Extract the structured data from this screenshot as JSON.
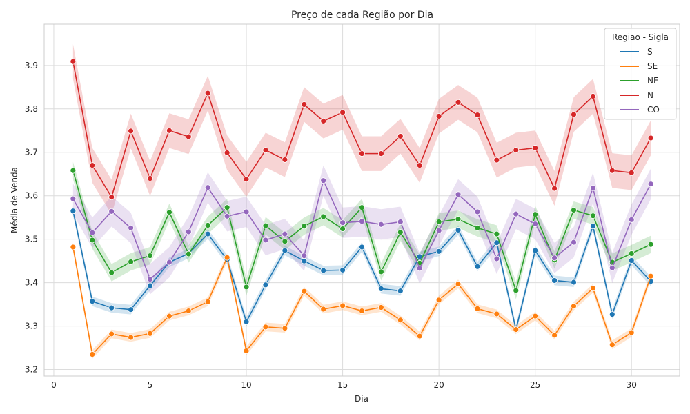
{
  "chart_data": {
    "type": "line",
    "title": "Preço de cada Região por Dia",
    "xlabel": "Dia",
    "ylabel": "Média de Venda",
    "xlim": [
      -0.5,
      32.5
    ],
    "ylim": [
      3.185,
      3.995
    ],
    "xticks": [
      0,
      5,
      10,
      15,
      20,
      25,
      30
    ],
    "yticks": [
      3.2,
      3.3,
      3.4,
      3.5,
      3.6,
      3.7,
      3.8,
      3.9
    ],
    "grid": true,
    "legend": {
      "title": "Regiao - Sigla",
      "position": "top-right"
    },
    "x": [
      1,
      2,
      3,
      4,
      5,
      6,
      7,
      8,
      9,
      10,
      11,
      12,
      13,
      14,
      15,
      16,
      17,
      18,
      19,
      20,
      21,
      22,
      23,
      24,
      25,
      26,
      27,
      28,
      29,
      30,
      31
    ],
    "series": [
      {
        "name": "S",
        "color": "#1f77b4",
        "values": [
          3.565,
          3.357,
          3.342,
          3.338,
          3.393,
          3.447,
          3.467,
          3.512,
          3.453,
          3.31,
          3.395,
          3.474,
          3.45,
          3.428,
          3.429,
          3.482,
          3.386,
          3.381,
          3.46,
          3.472,
          3.521,
          3.437,
          3.492,
          3.292,
          3.474,
          3.405,
          3.401,
          3.53,
          3.327,
          3.451,
          3.403
        ],
        "band": 0.011
      },
      {
        "name": "SE",
        "color": "#ff7f0e",
        "values": [
          3.482,
          3.235,
          3.282,
          3.274,
          3.283,
          3.323,
          3.335,
          3.356,
          3.458,
          3.243,
          3.298,
          3.295,
          3.38,
          3.339,
          3.347,
          3.335,
          3.343,
          3.314,
          3.277,
          3.36,
          3.397,
          3.34,
          3.328,
          3.292,
          3.323,
          3.279,
          3.346,
          3.387,
          3.257,
          3.285,
          3.415
        ],
        "band": 0.01
      },
      {
        "name": "NE",
        "color": "#2ca02c",
        "values": [
          3.658,
          3.498,
          3.423,
          3.448,
          3.462,
          3.562,
          3.466,
          3.532,
          3.573,
          3.39,
          3.531,
          3.495,
          3.53,
          3.552,
          3.524,
          3.573,
          3.425,
          3.516,
          3.445,
          3.54,
          3.546,
          3.526,
          3.512,
          3.382,
          3.557,
          3.452,
          3.567,
          3.554,
          3.447,
          3.467,
          3.488
        ],
        "band": 0.02
      },
      {
        "name": "N",
        "color": "#d62728",
        "values": [
          3.909,
          3.67,
          3.597,
          3.749,
          3.64,
          3.75,
          3.736,
          3.836,
          3.699,
          3.638,
          3.705,
          3.683,
          3.81,
          3.772,
          3.792,
          3.697,
          3.697,
          3.737,
          3.67,
          3.783,
          3.815,
          3.786,
          3.682,
          3.705,
          3.71,
          3.617,
          3.787,
          3.829,
          3.658,
          3.653,
          3.733
        ],
        "band": 0.04
      },
      {
        "name": "CO",
        "color": "#9467bd",
        "values": [
          3.593,
          3.515,
          3.564,
          3.526,
          3.408,
          3.447,
          3.517,
          3.619,
          3.553,
          3.563,
          3.498,
          3.512,
          3.462,
          3.635,
          3.538,
          3.541,
          3.534,
          3.54,
          3.433,
          3.52,
          3.603,
          3.563,
          3.455,
          3.558,
          3.535,
          3.457,
          3.493,
          3.618,
          3.434,
          3.545,
          3.627
        ],
        "band": 0.035
      }
    ]
  }
}
